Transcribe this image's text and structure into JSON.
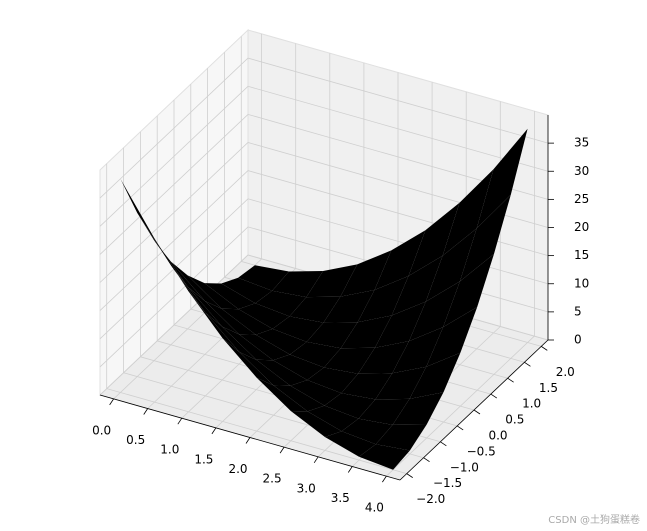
{
  "chart_data": {
    "type": "surface",
    "colormap": "coolwarm",
    "x": [
      0,
      0.5,
      1,
      1.5,
      2,
      2.5,
      3,
      3.5,
      4
    ],
    "y": [
      -2,
      -1.5,
      -1,
      -0.5,
      0,
      0.5,
      1,
      1.5,
      2
    ],
    "z": [
      [
        38,
        29.1,
        21.4,
        14.8,
        9.5,
        5.3,
        2.4,
        0.6,
        0
      ],
      [
        29.1,
        21.4,
        14.8,
        9.5,
        5.3,
        2.4,
        0.6,
        0,
        0.6
      ],
      [
        21.4,
        14.8,
        9.5,
        5.3,
        2.4,
        0.6,
        0,
        0.6,
        2.4
      ],
      [
        14.8,
        9.5,
        5.3,
        2.4,
        0.6,
        0,
        0.6,
        2.4,
        5.3
      ],
      [
        9.5,
        5.3,
        2.4,
        0.6,
        0,
        0.6,
        2.4,
        5.3,
        9.5
      ],
      [
        5.3,
        2.4,
        0.6,
        0,
        0.6,
        2.4,
        5.3,
        9.5,
        14.8
      ],
      [
        2.4,
        0.6,
        0,
        0.6,
        2.4,
        5.3,
        9.5,
        14.8,
        21.4
      ],
      [
        0.6,
        0,
        0.6,
        2.4,
        5.3,
        9.5,
        14.8,
        21.4,
        29.1
      ],
      [
        0,
        0.6,
        2.4,
        5.3,
        9.5,
        14.8,
        21.4,
        29.1,
        38
      ]
    ],
    "xlim": [
      -0.2,
      4.2
    ],
    "ylim": [
      -2.2,
      2.2
    ],
    "zlim": [
      0,
      40
    ],
    "xticks": [
      {
        "value": 0,
        "label": "0.0"
      },
      0.5,
      {
        "value": 1,
        "label": "1.0"
      },
      1.5,
      {
        "value": 2,
        "label": "2.0"
      },
      2.5,
      {
        "value": 3,
        "label": "3.0"
      },
      3.5,
      {
        "value": 4,
        "label": "4.0"
      }
    ],
    "yticks": [
      {
        "value": -2,
        "label": "−2.0"
      },
      {
        "value": -1.5,
        "label": "−1.5"
      },
      {
        "value": -1,
        "label": "−1.0"
      },
      {
        "value": -0.5,
        "label": "−0.5"
      },
      {
        "value": 0,
        "label": "0.0"
      },
      0.5,
      {
        "value": 1,
        "label": "1.0"
      },
      1.5,
      {
        "value": 2,
        "label": "2.0"
      }
    ],
    "zticks": [
      0,
      5,
      10,
      15,
      20,
      25,
      30,
      35
    ],
    "grid": true
  },
  "watermark": "CSDN @土狗蛋糕卷"
}
